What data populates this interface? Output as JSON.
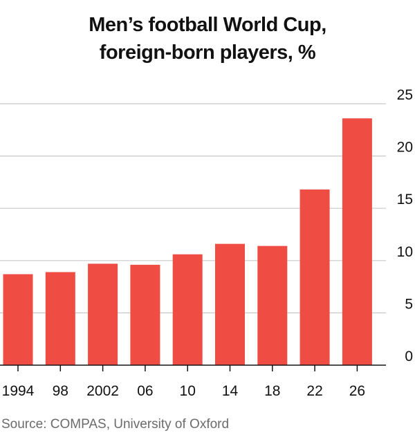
{
  "title_lines": [
    "Men’s football World Cup,",
    "foreign-born players, %"
  ],
  "source": "Source: COMPAS, University of Oxford",
  "colors": {
    "bar": "#ef4d44",
    "grid": "#c8c8c8",
    "axis": "#111111",
    "source_text": "#6b6b6b"
  },
  "chart_data": {
    "type": "bar",
    "title": "Men’s football World Cup, foreign-born players, %",
    "categories": [
      "1994",
      "98",
      "2002",
      "06",
      "10",
      "14",
      "18",
      "22",
      "26"
    ],
    "values": [
      8.7,
      8.9,
      9.7,
      9.6,
      10.6,
      11.6,
      11.4,
      16.8,
      23.6
    ],
    "ylim": [
      0,
      25
    ],
    "yticks": [
      0,
      5,
      10,
      15,
      20,
      25
    ],
    "xlabel": "",
    "ylabel": "",
    "grid": true,
    "y_axis_side": "right"
  }
}
